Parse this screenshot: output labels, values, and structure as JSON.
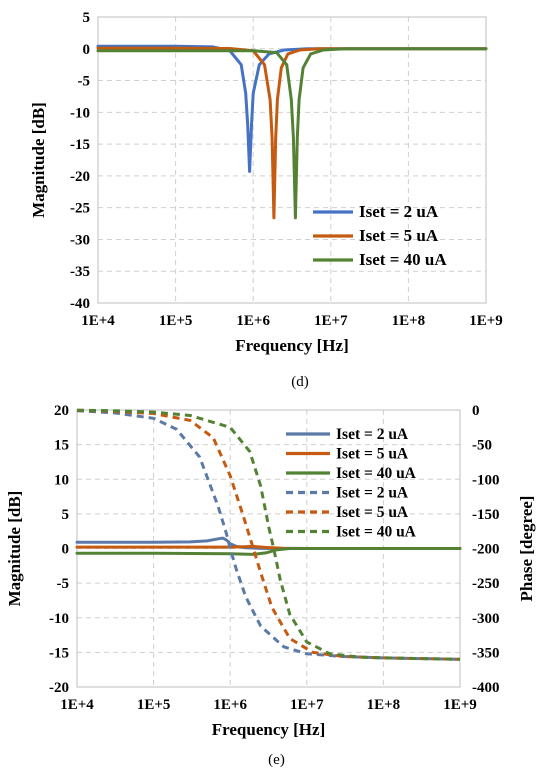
{
  "chart_data": [
    {
      "type": "line",
      "caption": "(d)",
      "xlabel": "Frequency [Hz]",
      "ylabel": "Magnitude [dB]",
      "x_scale": "log",
      "xlim": [
        10000,
        1000000000
      ],
      "ylim": [
        -40,
        5
      ],
      "x_ticks": [
        "1E+4",
        "1E+5",
        "1E+6",
        "1E+7",
        "1E+8",
        "1E+9"
      ],
      "y_ticks": [
        "5",
        "0",
        "-5",
        "-10",
        "-15",
        "-20",
        "-25",
        "-30",
        "-35",
        "-40"
      ],
      "grid": true,
      "legend_position": "right-center",
      "series": [
        {
          "name": "Iset = 2 uA",
          "color": "#4472C4",
          "style": "solid",
          "x": [
            10000,
            100000,
            300000,
            500000,
            700000,
            800000,
            850000,
            900000,
            950000,
            1000000,
            1200000,
            1600000,
            2500000,
            5000000,
            10000000,
            100000000,
            1000000000
          ],
          "y": [
            0.4,
            0.4,
            0.3,
            -0.3,
            -2.5,
            -7,
            -12,
            -19.3,
            -12,
            -7,
            -2.5,
            -0.8,
            -0.2,
            0,
            0,
            0,
            0
          ]
        },
        {
          "name": "Iset = 5 uA",
          "color": "#C55A11",
          "style": "solid",
          "x": [
            10000,
            100000,
            500000,
            1000000,
            1400000,
            1650000,
            1750000,
            1850000,
            1950000,
            2050000,
            2300000,
            2800000,
            4000000,
            7000000,
            10000000,
            100000000,
            1000000000
          ],
          "y": [
            0.1,
            0.1,
            0.05,
            -0.3,
            -2.5,
            -8,
            -14,
            -26.6,
            -14,
            -8,
            -3,
            -0.8,
            -0.2,
            0,
            0,
            0,
            0
          ]
        },
        {
          "name": "Iset = 40 uA",
          "color": "#548235",
          "style": "solid",
          "x": [
            10000,
            100000,
            1000000,
            2000000,
            2700000,
            3100000,
            3300000,
            3500000,
            3700000,
            3900000,
            4400000,
            5500000,
            8000000,
            15000000,
            40000000,
            100000000,
            1000000000
          ],
          "y": [
            -0.3,
            -0.3,
            -0.3,
            -0.6,
            -2.5,
            -8,
            -14,
            -26.6,
            -14,
            -8,
            -3,
            -0.8,
            -0.2,
            0,
            0,
            0,
            0
          ]
        }
      ]
    },
    {
      "type": "line",
      "caption": "(e)",
      "xlabel": "Frequency [Hz]",
      "ylabel": "Magnitude [dB]",
      "y2label": "Phase [degree]",
      "x_scale": "log",
      "xlim": [
        10000,
        1000000000
      ],
      "ylim": [
        -20,
        20
      ],
      "y2lim": [
        -400,
        0
      ],
      "x_ticks": [
        "1E+4",
        "1E+5",
        "1E+6",
        "1E+7",
        "1E+8",
        "1E+9"
      ],
      "y_ticks": [
        "20",
        "15",
        "10",
        "5",
        "0",
        "-5",
        "-10",
        "-15",
        "-20"
      ],
      "y2_ticks": [
        "0",
        "-50",
        "-100",
        "-150",
        "-200",
        "-250",
        "-300",
        "-350",
        "-400"
      ],
      "grid": true,
      "legend_position": "top-right",
      "series": [
        {
          "name": "Iset = 2 uA",
          "color": "#5B7AA8",
          "style": "solid",
          "axis": "left",
          "x": [
            10000,
            100000,
            300000,
            500000,
            700000,
            800000,
            900000,
            1000000,
            1200000,
            1600000,
            2500000,
            5000000,
            10000000,
            100000000,
            1000000000
          ],
          "y": [
            0.9,
            0.9,
            0.95,
            1.1,
            1.4,
            1.5,
            1.2,
            0.7,
            0.3,
            0.1,
            0.02,
            0,
            0,
            0,
            0
          ]
        },
        {
          "name": "Iset = 5 uA",
          "color": "#C55A11",
          "style": "solid",
          "axis": "left",
          "x": [
            10000,
            100000,
            1000000,
            1500000,
            2000000,
            3000000,
            5000000,
            10000000,
            100000000,
            1000000000
          ],
          "y": [
            0.2,
            0.2,
            0.2,
            0.25,
            0.3,
            0.15,
            0.05,
            0,
            0,
            0
          ]
        },
        {
          "name": "Iset = 40 uA",
          "color": "#548235",
          "style": "solid",
          "axis": "left",
          "x": [
            10000,
            100000,
            1000000,
            2000000,
            3000000,
            4000000,
            6000000,
            10000000,
            100000000,
            1000000000
          ],
          "y": [
            -0.7,
            -0.7,
            -0.75,
            -0.85,
            -0.6,
            -0.2,
            0,
            0,
            0,
            0
          ]
        },
        {
          "name": "Iset = 2 uA",
          "color": "#5B7AA8",
          "style": "dashed",
          "axis": "right",
          "x": [
            10000,
            30000,
            100000,
            200000,
            400000,
            700000,
            900000,
            1000000,
            1200000,
            1600000,
            2500000,
            5000000,
            10000000,
            30000000,
            100000000,
            1000000000
          ],
          "y": [
            -1,
            -4,
            -12,
            -28,
            -68,
            -140,
            -180,
            -200,
            -230,
            -270,
            -312,
            -342,
            -352,
            -356,
            -358,
            -360
          ]
        },
        {
          "name": "Iset = 5 uA",
          "color": "#C55A11",
          "style": "dashed",
          "axis": "right",
          "x": [
            10000,
            30000,
            100000,
            300000,
            600000,
            1000000,
            1500000,
            2000000,
            2500000,
            3500000,
            6000000,
            12000000,
            30000000,
            100000000,
            1000000000
          ],
          "y": [
            -0.5,
            -2,
            -5,
            -15,
            -40,
            -95,
            -155,
            -200,
            -235,
            -285,
            -330,
            -350,
            -356,
            -358,
            -360
          ]
        },
        {
          "name": "Iset = 40 uA",
          "color": "#548235",
          "style": "dashed",
          "axis": "right",
          "x": [
            10000,
            30000,
            100000,
            300000,
            1000000,
            1800000,
            2500000,
            3200000,
            3700000,
            4500000,
            6000000,
            10000000,
            20000000,
            50000000,
            100000000,
            1000000000
          ],
          "y": [
            -0.3,
            -1,
            -3,
            -8,
            -25,
            -60,
            -110,
            -170,
            -200,
            -245,
            -295,
            -335,
            -352,
            -357,
            -358,
            -360
          ]
        }
      ]
    }
  ]
}
